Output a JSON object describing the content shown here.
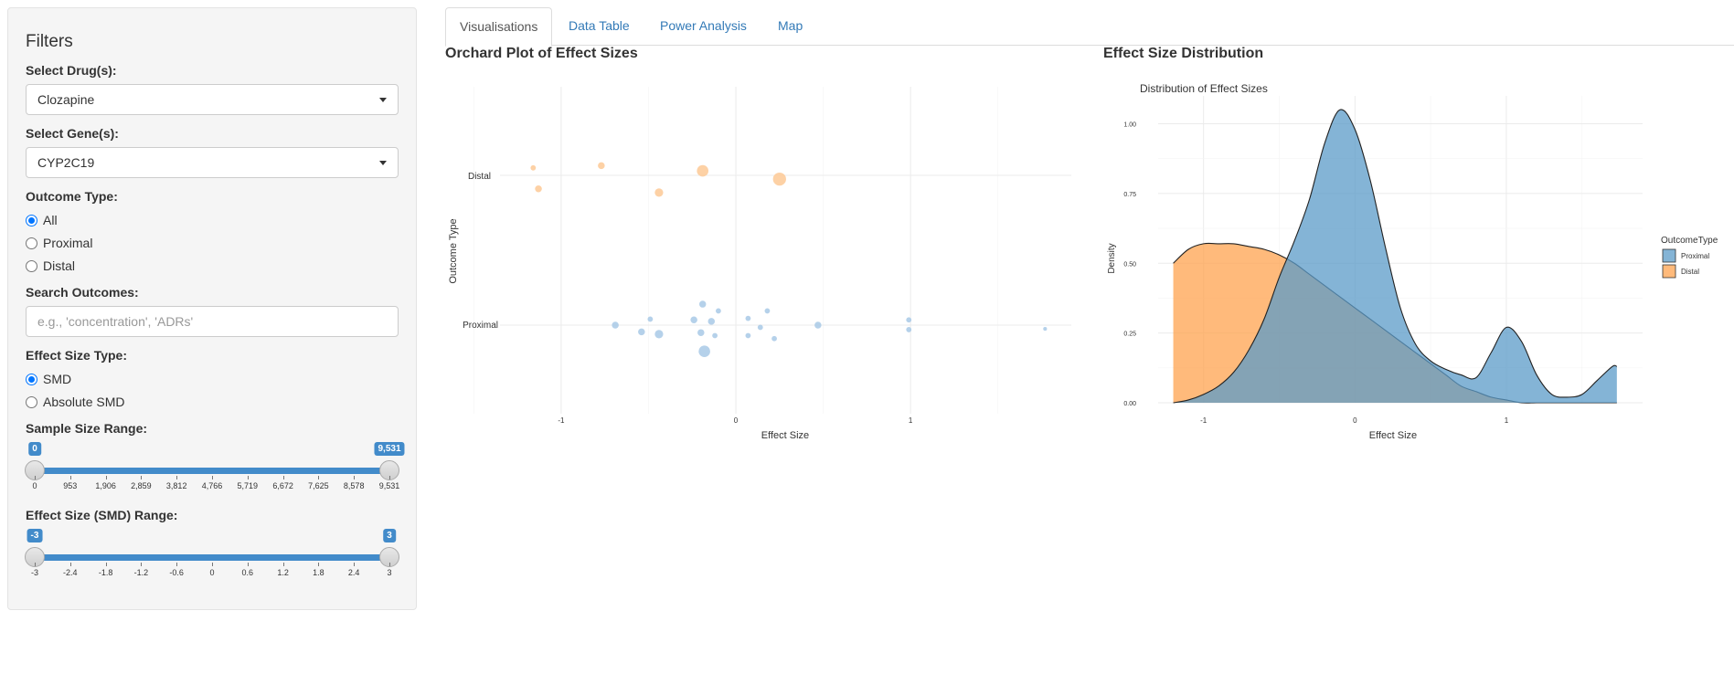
{
  "sidebar": {
    "title": "Filters",
    "drug_label": "Select Drug(s):",
    "drug_value": "Clozapine",
    "gene_label": "Select Gene(s):",
    "gene_value": "CYP2C19",
    "outcome_label": "Outcome Type:",
    "outcome_options": [
      "All",
      "Proximal",
      "Distal"
    ],
    "outcome_selected": "All",
    "search_label": "Search Outcomes:",
    "search_placeholder": "e.g., 'concentration', 'ADRs'",
    "search_value": "",
    "effect_type_label": "Effect Size Type:",
    "effect_type_options": [
      "SMD",
      "Absolute SMD"
    ],
    "effect_type_selected": "SMD",
    "sample_range_label": "Sample Size Range:",
    "sample_range": {
      "min": 0,
      "max": 9531,
      "from": 0,
      "to": 9531,
      "from_label": "0",
      "to_label": "9,531",
      "ticks": [
        "0",
        "953",
        "1,906",
        "2,859",
        "3,812",
        "4,766",
        "5,719",
        "6,672",
        "7,625",
        "8,578",
        "9,531"
      ]
    },
    "smd_range_label": "Effect Size (SMD) Range:",
    "smd_range": {
      "min": -3,
      "max": 3,
      "from": -3,
      "to": 3,
      "from_label": "-3",
      "to_label": "3",
      "ticks": [
        "-3",
        "-2.4",
        "-1.8",
        "-1.2",
        "-0.6",
        "0",
        "0.6",
        "1.2",
        "1.8",
        "2.4",
        "3"
      ]
    }
  },
  "tabs": [
    {
      "label": "Visualisations",
      "active": true
    },
    {
      "label": "Data Table",
      "active": false
    },
    {
      "label": "Power Analysis",
      "active": false
    },
    {
      "label": "Map",
      "active": false
    }
  ],
  "left_panel_title": "Orchard Plot of Effect Sizes",
  "right_panel_title": "Effect Size Distribution",
  "colors": {
    "proximal": "#a8c9e6",
    "distal": "#fdc995",
    "proximal_density": "#5b9bc8",
    "distal_density": "#ffa34f",
    "accent": "#428bca",
    "link": "#337ab7"
  },
  "chart_data": [
    {
      "type": "scatter",
      "title": "",
      "xlabel": "Effect Size",
      "ylabel": "Outcome Type",
      "xlim": [
        -1.35,
        1.92
      ],
      "x_ticks": [
        "-1",
        "0",
        "1"
      ],
      "y_categories": [
        "Proximal",
        "Distal"
      ],
      "grid": true,
      "series": [
        {
          "name": "Distal",
          "points": [
            {
              "x": -1.16,
              "y": 0.1,
              "size": 2
            },
            {
              "x": -1.13,
              "y": -0.18,
              "size": 3
            },
            {
              "x": -0.77,
              "y": 0.13,
              "size": 3
            },
            {
              "x": -0.44,
              "y": -0.23,
              "size": 4
            },
            {
              "x": -0.19,
              "y": 0.06,
              "size": 6
            },
            {
              "x": 0.25,
              "y": -0.05,
              "size": 7
            }
          ]
        },
        {
          "name": "Proximal",
          "points": [
            {
              "x": -0.69,
              "y": 0.0,
              "size": 3
            },
            {
              "x": -0.54,
              "y": -0.09,
              "size": 3
            },
            {
              "x": -0.49,
              "y": 0.08,
              "size": 2
            },
            {
              "x": -0.44,
              "y": -0.12,
              "size": 4
            },
            {
              "x": -0.24,
              "y": 0.07,
              "size": 3
            },
            {
              "x": -0.2,
              "y": -0.1,
              "size": 3
            },
            {
              "x": -0.19,
              "y": 0.28,
              "size": 3
            },
            {
              "x": -0.18,
              "y": -0.35,
              "size": 6
            },
            {
              "x": -0.14,
              "y": 0.05,
              "size": 3
            },
            {
              "x": -0.12,
              "y": -0.14,
              "size": 2
            },
            {
              "x": -0.1,
              "y": 0.19,
              "size": 2
            },
            {
              "x": 0.07,
              "y": 0.09,
              "size": 2
            },
            {
              "x": 0.07,
              "y": -0.14,
              "size": 2
            },
            {
              "x": 0.14,
              "y": -0.03,
              "size": 2
            },
            {
              "x": 0.18,
              "y": 0.19,
              "size": 2
            },
            {
              "x": 0.22,
              "y": -0.18,
              "size": 2
            },
            {
              "x": 0.47,
              "y": 0.0,
              "size": 3
            },
            {
              "x": 0.99,
              "y": 0.07,
              "size": 2
            },
            {
              "x": 0.99,
              "y": -0.06,
              "size": 2
            },
            {
              "x": 1.77,
              "y": -0.05,
              "size": 1
            }
          ]
        }
      ]
    },
    {
      "type": "area",
      "title": "Distribution of Effect Sizes",
      "xlabel": "Effect Size",
      "ylabel": "Density",
      "xlim": [
        -1.3,
        1.9
      ],
      "ylim": [
        0,
        1.1
      ],
      "x_ticks": [
        "-1",
        "0",
        "1"
      ],
      "y_ticks": [
        "0.00",
        "0.25",
        "0.50",
        "0.75",
        "1.00"
      ],
      "legend_title": "OutcomeType",
      "legend_position": "right",
      "x": [
        -1.2,
        -1.1,
        -1.0,
        -0.9,
        -0.8,
        -0.7,
        -0.6,
        -0.5,
        -0.4,
        -0.3,
        -0.2,
        -0.1,
        0.0,
        0.1,
        0.2,
        0.3,
        0.4,
        0.5,
        0.6,
        0.7,
        0.8,
        0.9,
        1.0,
        1.1,
        1.2,
        1.3,
        1.4,
        1.5,
        1.6,
        1.7,
        1.73
      ],
      "series": [
        {
          "name": "Proximal",
          "values": [
            0.0,
            0.01,
            0.03,
            0.06,
            0.11,
            0.19,
            0.3,
            0.45,
            0.58,
            0.73,
            0.93,
            1.05,
            0.98,
            0.8,
            0.56,
            0.34,
            0.21,
            0.15,
            0.12,
            0.1,
            0.09,
            0.18,
            0.27,
            0.22,
            0.1,
            0.03,
            0.02,
            0.03,
            0.08,
            0.13,
            0.13
          ]
        },
        {
          "name": "Distal",
          "values": [
            0.5,
            0.55,
            0.57,
            0.57,
            0.57,
            0.56,
            0.55,
            0.53,
            0.5,
            0.46,
            0.42,
            0.38,
            0.34,
            0.3,
            0.26,
            0.22,
            0.18,
            0.14,
            0.1,
            0.06,
            0.04,
            0.02,
            0.01,
            0.0,
            0.0,
            0.0,
            0.0,
            0.0,
            0.0,
            0.0,
            0.0
          ]
        }
      ]
    }
  ]
}
